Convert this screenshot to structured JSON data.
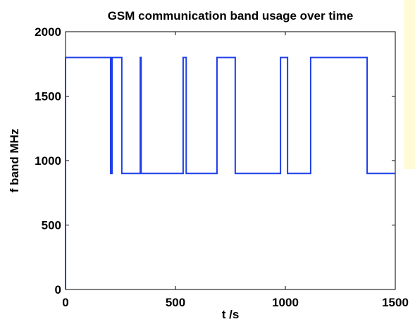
{
  "chart_data": {
    "type": "line",
    "title": "GSM communication band usage over time",
    "x_label": "t /s",
    "y_label": "f band MHz",
    "x": [
      0,
      0,
      205,
      205,
      207,
      207,
      210,
      210,
      212,
      212,
      256,
      256,
      340,
      340,
      344,
      344,
      535,
      535,
      549,
      549,
      689,
      689,
      772,
      772,
      978,
      978,
      1010,
      1010,
      1115,
      1115,
      1372,
      1372,
      1500
    ],
    "series": [
      {
        "color": "#1f3fe8",
        "values": [
          0,
          1800,
          1800,
          900,
          900,
          1800,
          1800,
          900,
          900,
          1800,
          1800,
          900,
          900,
          1800,
          1800,
          900,
          900,
          1800,
          1800,
          900,
          900,
          1800,
          1800,
          900,
          900,
          1800,
          1800,
          900,
          900,
          1800,
          1800,
          900,
          900
        ]
      }
    ],
    "xlim": [
      0,
      1500
    ],
    "xticks": [
      0,
      500,
      1000,
      1500
    ],
    "ylim": [
      0,
      2000
    ],
    "yticks": [
      0,
      500,
      1000,
      1500,
      2000
    ]
  }
}
